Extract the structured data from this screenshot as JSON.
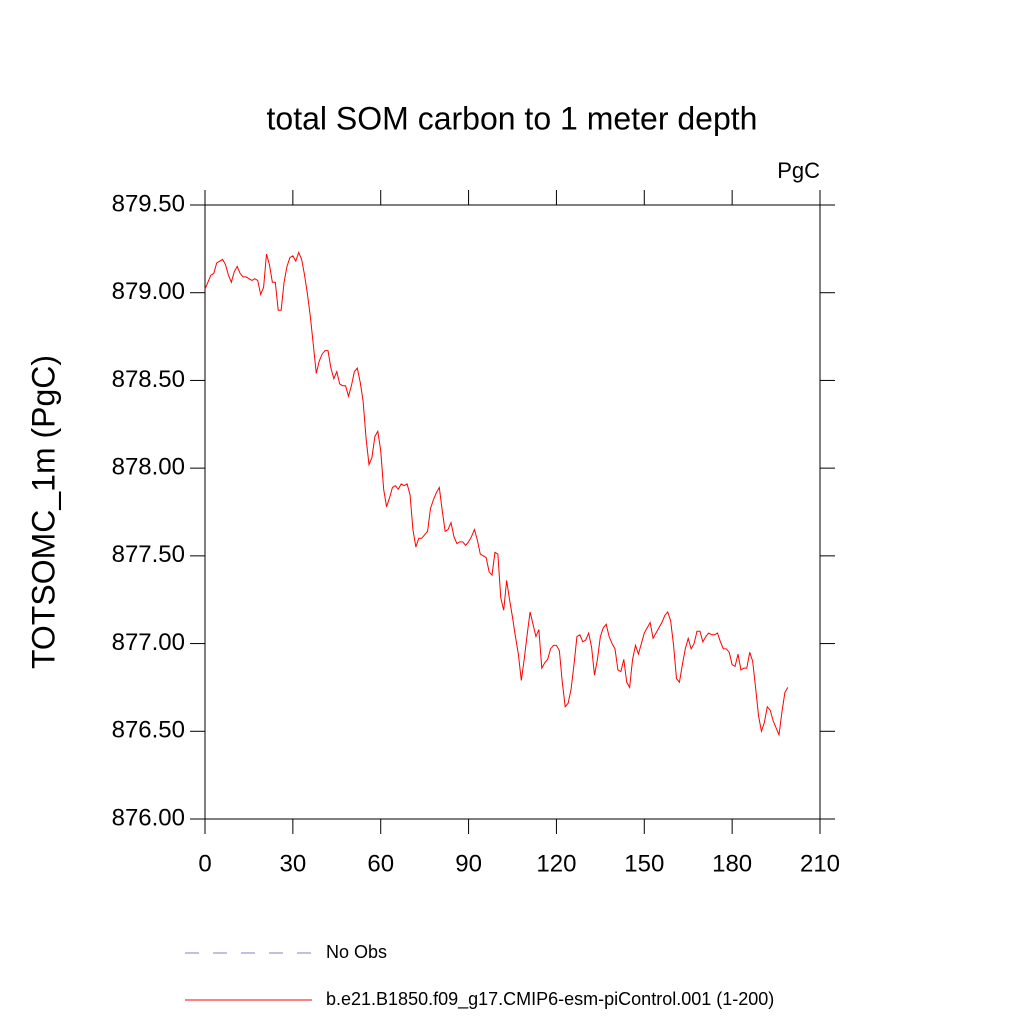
{
  "chart_data": {
    "type": "line",
    "title": "total SOM carbon to 1 meter depth",
    "subtitle": "PgC",
    "ylabel": "TOTSOMC_1m  (PgC)",
    "x": [
      0,
      1,
      2,
      3,
      4,
      5,
      6,
      7,
      8,
      9,
      10,
      11,
      12,
      13,
      14,
      15,
      16,
      17,
      18,
      19,
      20,
      21,
      22,
      23,
      24,
      25,
      26,
      27,
      28,
      29,
      30,
      31,
      32,
      33,
      34,
      35,
      36,
      37,
      38,
      39,
      40,
      41,
      42,
      43,
      44,
      45,
      46,
      47,
      48,
      49,
      50,
      51,
      52,
      53,
      54,
      55,
      56,
      57,
      58,
      59,
      60,
      61,
      62,
      63,
      64,
      65,
      66,
      67,
      68,
      69,
      70,
      71,
      72,
      73,
      74,
      75,
      76,
      77,
      78,
      79,
      80,
      81,
      82,
      83,
      84,
      85,
      86,
      87,
      88,
      89,
      90,
      91,
      92,
      93,
      94,
      95,
      96,
      97,
      98,
      99,
      100,
      101,
      102,
      103,
      104,
      105,
      106,
      107,
      108,
      109,
      110,
      111,
      112,
      113,
      114,
      115,
      116,
      117,
      118,
      119,
      120,
      121,
      122,
      123,
      124,
      125,
      126,
      127,
      128,
      129,
      130,
      131,
      132,
      133,
      134,
      135,
      136,
      137,
      138,
      139,
      140,
      141,
      142,
      143,
      144,
      145,
      146,
      147,
      148,
      149,
      150,
      151,
      152,
      153,
      154,
      155,
      156,
      157,
      158,
      159,
      160,
      161,
      162,
      163,
      164,
      165,
      166,
      167,
      168,
      169,
      170,
      171,
      172,
      173,
      174,
      175,
      176,
      177,
      178,
      179,
      180,
      181,
      182,
      183,
      184,
      185,
      186,
      187,
      188,
      189,
      190,
      191,
      192,
      193,
      194,
      195,
      196,
      197,
      198,
      199
    ],
    "series": [
      {
        "name": "b.e21.B1850.f09_g17.CMIP6-esm-piControl.001 (1-200)",
        "color": "#ff0000",
        "values": [
          879.02,
          879.06,
          879.1,
          879.11,
          879.17,
          879.18,
          879.19,
          879.16,
          879.1,
          879.06,
          879.12,
          879.15,
          879.11,
          879.09,
          879.09,
          879.08,
          879.07,
          879.08,
          879.07,
          878.99,
          879.03,
          879.22,
          879.16,
          879.06,
          879.06,
          878.9,
          878.9,
          879.06,
          879.15,
          879.2,
          879.21,
          879.18,
          879.23,
          879.19,
          879.1,
          878.99,
          878.86,
          878.7,
          878.54,
          878.61,
          878.65,
          878.67,
          878.67,
          878.57,
          878.51,
          878.55,
          878.48,
          878.47,
          878.47,
          878.41,
          878.47,
          878.55,
          878.57,
          878.49,
          878.38,
          878.17,
          878.02,
          878.06,
          878.18,
          878.21,
          878.1,
          877.88,
          877.78,
          877.83,
          877.89,
          877.9,
          877.88,
          877.91,
          877.9,
          877.91,
          877.85,
          877.65,
          877.55,
          877.6,
          877.6,
          877.62,
          877.64,
          877.77,
          877.82,
          877.86,
          877.89,
          877.76,
          877.64,
          877.65,
          877.69,
          877.61,
          877.57,
          877.58,
          877.58,
          877.56,
          877.58,
          877.61,
          877.65,
          877.59,
          877.51,
          877.5,
          877.49,
          877.41,
          877.39,
          877.52,
          877.51,
          877.26,
          877.19,
          877.36,
          877.25,
          877.15,
          877.04,
          876.94,
          876.79,
          876.91,
          877.05,
          877.18,
          877.11,
          877.04,
          877.08,
          876.86,
          876.89,
          876.91,
          876.97,
          876.99,
          876.99,
          876.96,
          876.78,
          876.64,
          876.66,
          876.74,
          876.88,
          877.04,
          877.05,
          877.01,
          877.02,
          877.06,
          876.98,
          876.82,
          876.91,
          877.04,
          877.09,
          877.11,
          877.04,
          877.0,
          876.97,
          876.85,
          876.84,
          876.91,
          876.78,
          876.75,
          876.91,
          876.99,
          876.94,
          877.0,
          877.06,
          877.09,
          877.12,
          877.03,
          877.06,
          877.09,
          877.12,
          877.16,
          877.18,
          877.13,
          876.99,
          876.8,
          876.78,
          876.88,
          876.97,
          877.03,
          876.97,
          877.0,
          877.07,
          877.07,
          877.01,
          877.04,
          877.06,
          877.05,
          877.05,
          877.06,
          877.01,
          876.97,
          876.97,
          876.95,
          876.88,
          876.87,
          876.94,
          876.85,
          876.86,
          876.86,
          876.95,
          876.9,
          876.75,
          876.59,
          876.5,
          876.55,
          876.64,
          876.62,
          876.56,
          876.52,
          876.48,
          876.61,
          876.72,
          876.75
        ]
      }
    ],
    "legend": [
      {
        "name": "No Obs",
        "color": "#8080c0",
        "dash": true
      }
    ],
    "xlim": [
      0,
      210
    ],
    "xticks": [
      0,
      30,
      60,
      90,
      120,
      150,
      180,
      210
    ],
    "ylim": [
      876,
      879.5
    ],
    "yticks": [
      {
        "value": 876,
        "label": "876.00"
      },
      {
        "value": 876.5,
        "label": "876.50"
      },
      {
        "value": 877,
        "label": "877.00"
      },
      {
        "value": 877.5,
        "label": "877.50"
      },
      {
        "value": 878,
        "label": "878.00"
      },
      {
        "value": 878.5,
        "label": "878.50"
      },
      {
        "value": 879,
        "label": "879.00"
      },
      {
        "value": 879.5,
        "label": "879.50"
      }
    ]
  }
}
